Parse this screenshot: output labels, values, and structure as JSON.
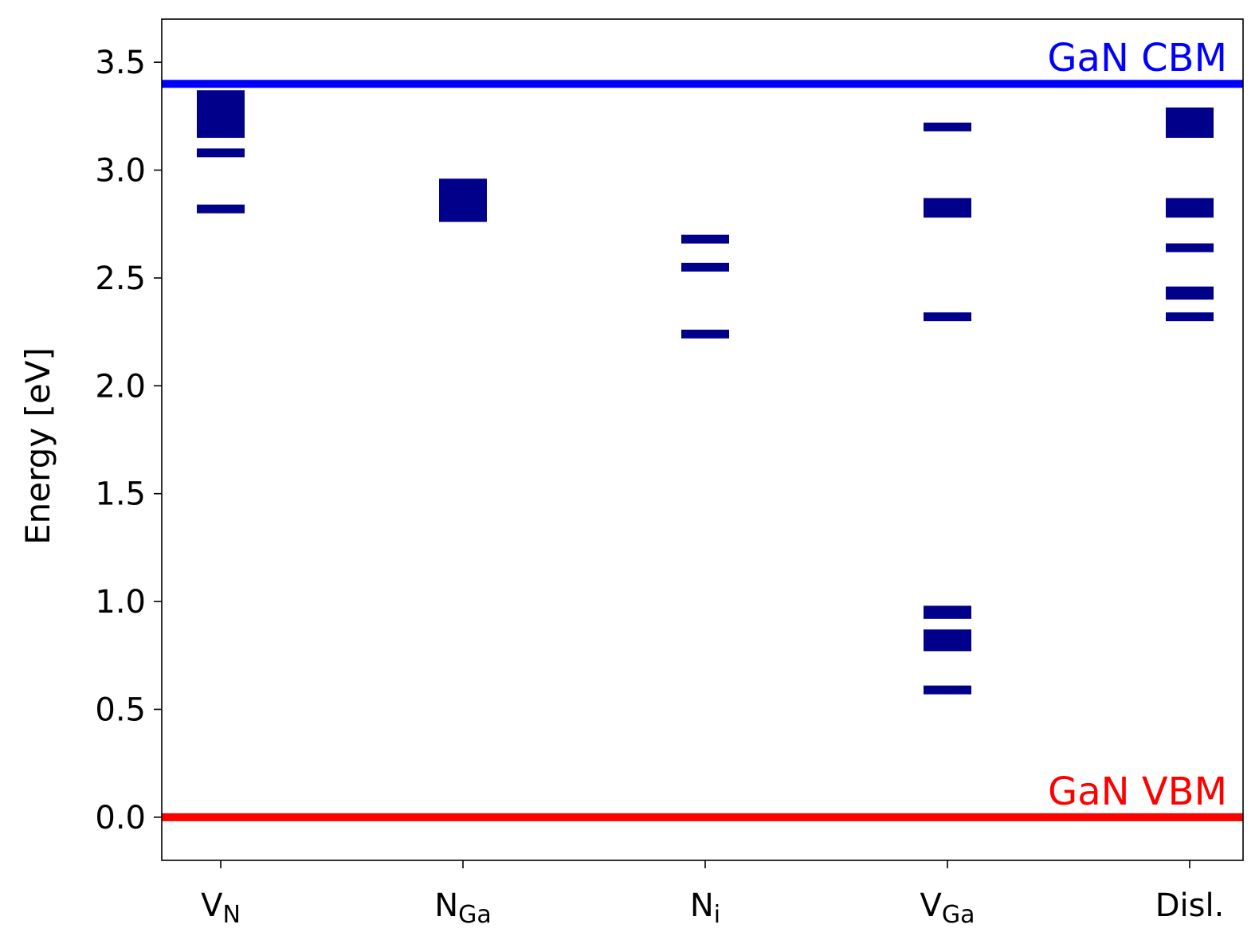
{
  "chart_data": {
    "type": "scatter",
    "ylabel": "Energy [eV]",
    "xlabel": "",
    "ylim": [
      -0.2,
      3.7
    ],
    "yticks": [
      "0.0",
      "0.5",
      "1.0",
      "1.5",
      "2.0",
      "2.5",
      "3.0",
      "3.5"
    ],
    "grid": false,
    "categories": [
      {
        "main": "V",
        "sub": "N"
      },
      {
        "main": "N",
        "sub": "Ga"
      },
      {
        "main": "N",
        "sub": "i"
      },
      {
        "main": "V",
        "sub": "Ga"
      },
      {
        "main": "Disl.",
        "sub": ""
      }
    ],
    "reference_lines": [
      {
        "label": "GaN CBM",
        "value": 3.4,
        "color": "#0000ff"
      },
      {
        "label": "GaN VBM",
        "value": 0.0,
        "color": "#ff0000"
      }
    ],
    "level_color": "#00008b",
    "levels": [
      [
        2.82,
        3.08,
        3.17,
        3.19,
        3.21,
        3.23,
        3.25,
        3.27,
        3.29,
        3.31,
        3.33,
        3.35
      ],
      [
        2.78,
        2.8,
        2.83,
        2.85,
        2.88,
        2.9,
        2.92,
        2.94
      ],
      [
        2.24,
        2.55,
        2.68
      ],
      [
        0.59,
        0.79,
        0.81,
        0.83,
        0.85,
        0.94,
        0.96,
        2.32,
        2.8,
        2.83,
        2.85,
        3.2
      ],
      [
        2.32,
        2.42,
        2.44,
        2.64,
        2.8,
        2.83,
        2.85,
        3.17,
        3.19,
        3.21,
        3.23,
        3.25,
        3.27
      ]
    ]
  }
}
